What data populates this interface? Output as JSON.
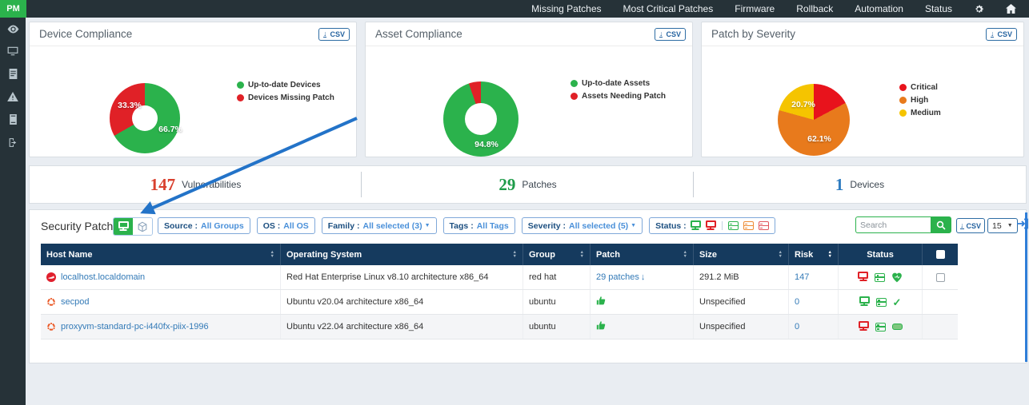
{
  "navbar": {
    "logo": "PM",
    "items": [
      "Missing Patches",
      "Most Critical Patches",
      "Firmware",
      "Rollback",
      "Automation",
      "Status"
    ],
    "icons": [
      "settings-gear-icon",
      "home-icon"
    ]
  },
  "sidebar": {
    "icons": [
      "eye-icon",
      "devices-monitor-icon",
      "report-list-icon",
      "alerts-warning-icon",
      "storage-drive-icon",
      "logout-icon"
    ]
  },
  "cards": [
    {
      "title": "Device Compliance",
      "csv_label": "CSV"
    },
    {
      "title": "Asset Compliance",
      "csv_label": "CSV"
    },
    {
      "title": "Patch by Severity",
      "csv_label": "CSV"
    }
  ],
  "chart_data": [
    {
      "type": "pie",
      "donut": true,
      "title": "Device Compliance",
      "labels": [
        "Up-to-date Devices",
        "Devices Missing Patch"
      ],
      "values": [
        66.7,
        33.3
      ],
      "data_labels": [
        "66.7%",
        "33.3%"
      ],
      "colors": [
        "#2bb24c",
        "#e02127"
      ],
      "unit": "%",
      "legend_position": "right"
    },
    {
      "type": "pie",
      "donut": true,
      "title": "Asset Compliance",
      "labels": [
        "Up-to-date Assets",
        "Assets Needing Patch"
      ],
      "values": [
        94.8,
        5.2
      ],
      "data_labels": [
        "94.8%",
        ""
      ],
      "colors": [
        "#2bb24c",
        "#e02127"
      ],
      "unit": "%",
      "legend_position": "right"
    },
    {
      "type": "pie",
      "donut": false,
      "title": "Patch by Severity",
      "labels": [
        "Critical",
        "High",
        "Medium"
      ],
      "values": [
        17.2,
        62.1,
        20.7
      ],
      "data_labels": [
        "",
        "62.1%",
        "20.7%"
      ],
      "colors": [
        "#e8131c",
        "#e87a1c",
        "#f5c400"
      ],
      "unit": "%",
      "legend_position": "right"
    }
  ],
  "stats": [
    {
      "value": "147",
      "label": "Vulnerabilities",
      "color": "#d9402e"
    },
    {
      "value": "29",
      "label": "Patches",
      "color": "#1d9b48"
    },
    {
      "value": "1",
      "label": "Devices",
      "color": "#2f7cc0"
    }
  ],
  "section": {
    "title": "Security Patches",
    "view_toggle_icons": [
      "monitor-view-icon",
      "cube-view-icon"
    ],
    "filters": [
      {
        "label": "Source :",
        "value": "All Groups"
      },
      {
        "label": "OS :",
        "value": "All OS"
      },
      {
        "label": "Family :",
        "value": "All selected (3)"
      },
      {
        "label": "Tags :",
        "value": "All Tags"
      },
      {
        "label": "Severity :",
        "value": "All selected (5)"
      }
    ],
    "status_filter_label": "Status :",
    "status_filter_icons": [
      "monitor-green",
      "monitor-red",
      "server-green",
      "server-orange",
      "server-red"
    ],
    "search_placeholder": "Search",
    "csv_label": "CSV",
    "page_size": "15"
  },
  "table": {
    "columns": [
      "Host Name",
      "Operating System",
      "Group",
      "Patch",
      "Size",
      "Risk",
      "Status"
    ],
    "rows": [
      {
        "host": "localhost.localdomain",
        "os_icon": "redhat-icon",
        "os": "Red Hat Enterprise Linux v8.10 architecture x86_64",
        "group": "red hat",
        "patch": "29 patches",
        "patch_suffix_icon": "arrow-down-blue",
        "size": "291.2 MiB",
        "risk": "147",
        "status_icons": [
          "monitor-red",
          "server-green",
          "heart-green"
        ],
        "checkbox": true
      },
      {
        "host": "secpod",
        "os_icon": "ubuntu-icon",
        "os": "Ubuntu v20.04 architecture x86_64",
        "group": "ubuntu",
        "patch_icon": "thumbs-up-green",
        "size": "Unspecified",
        "risk": "0",
        "status_icons": [
          "monitor-green",
          "server-green",
          "check-green"
        ],
        "checkbox": false
      },
      {
        "host": "proxyvm-standard-pc-i440fx-piix-1996",
        "os_icon": "ubuntu-icon",
        "os": "Ubuntu v22.04 architecture x86_64",
        "group": "ubuntu",
        "patch_icon": "thumbs-up-green",
        "size": "Unspecified",
        "risk": "0",
        "status_icons": [
          "monitor-red",
          "server-green",
          "battery-green"
        ],
        "checkbox": false
      }
    ]
  }
}
